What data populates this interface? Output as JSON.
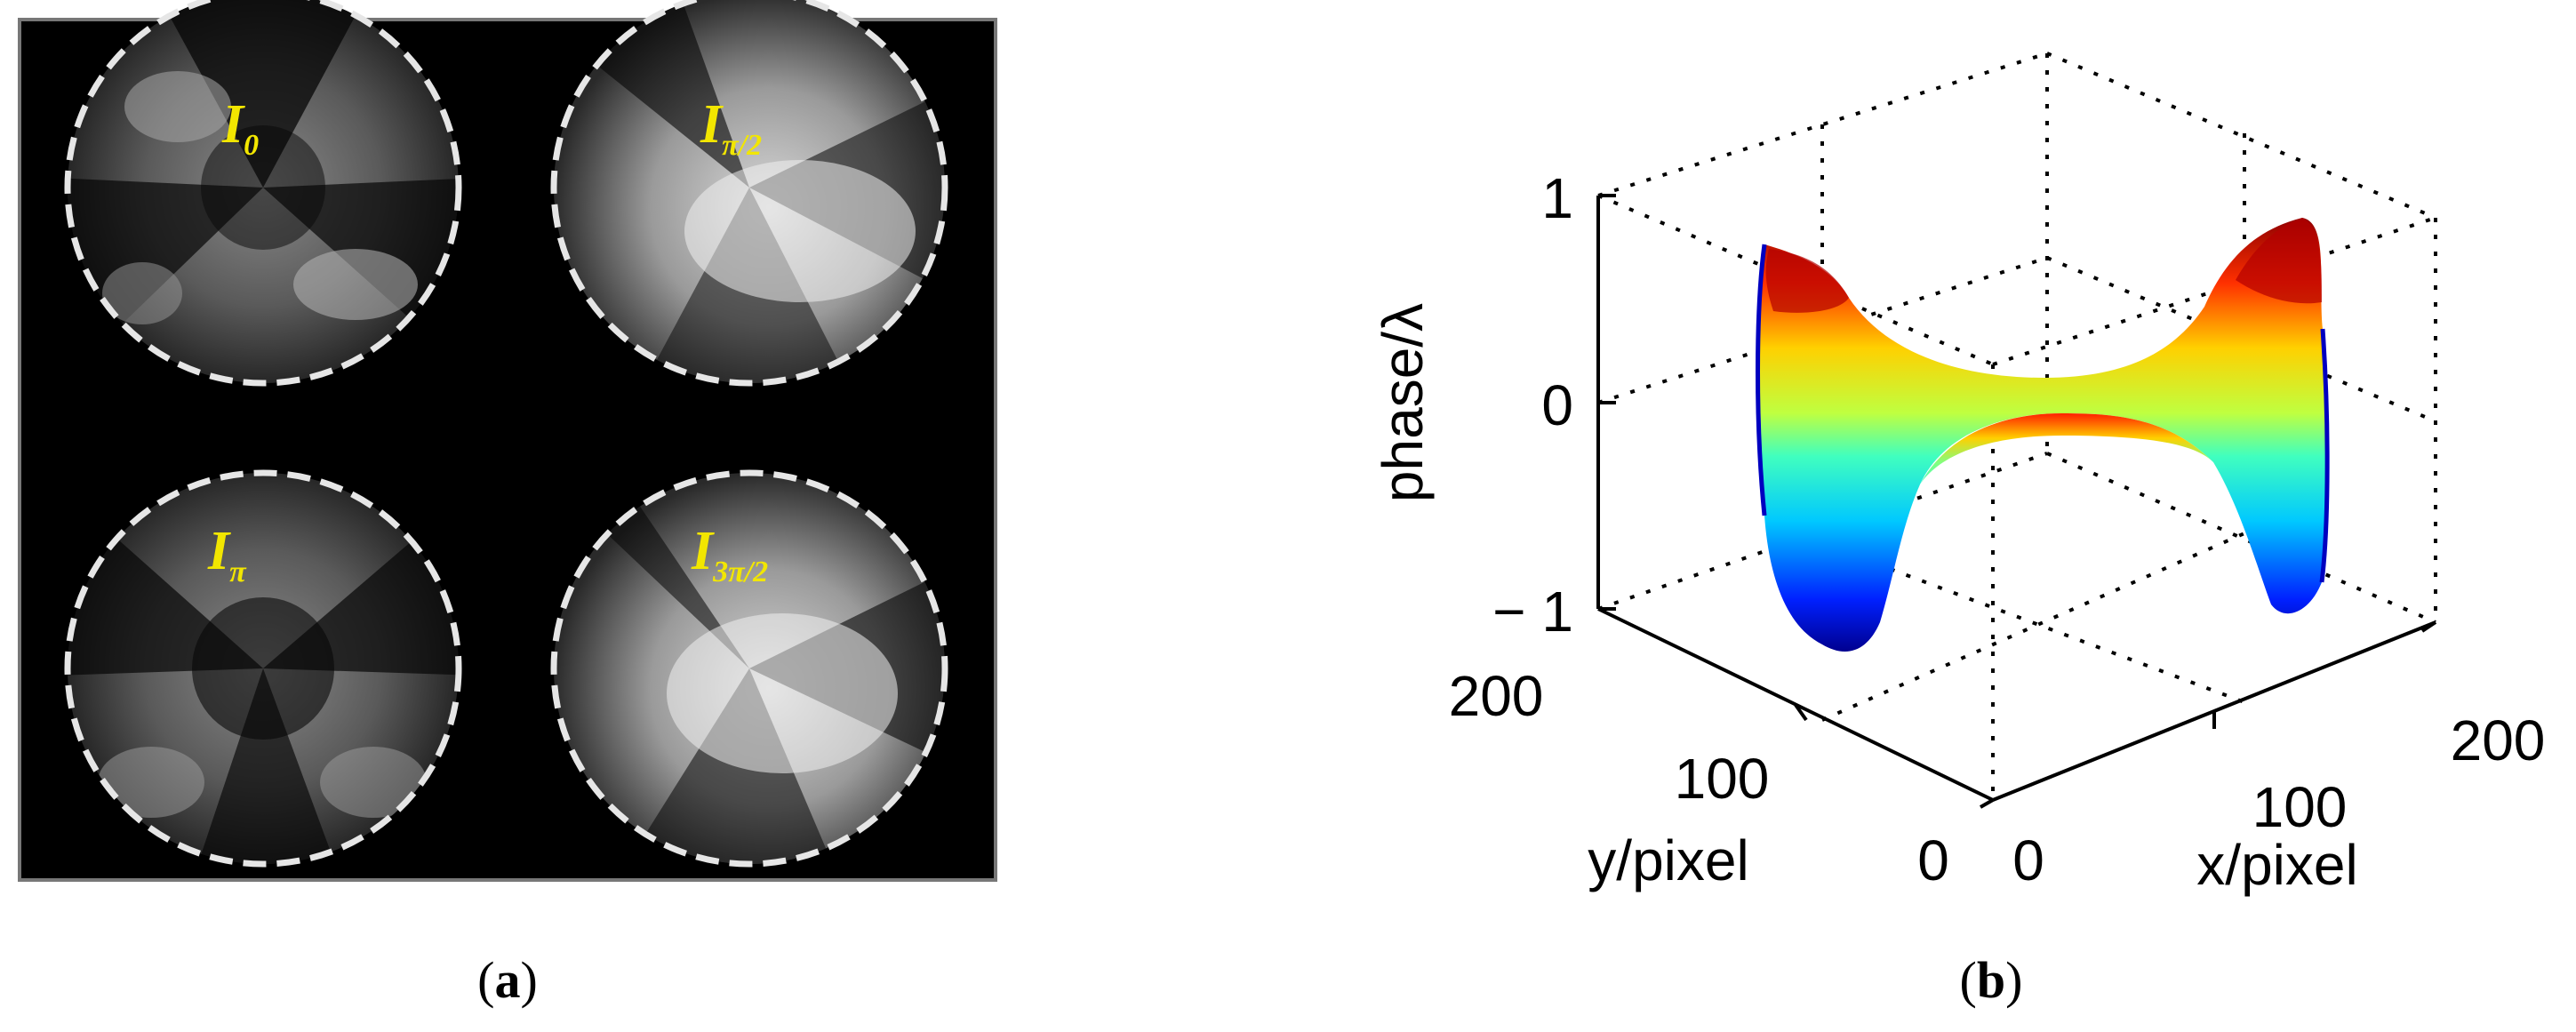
{
  "panel_a": {
    "caption_letter": "a",
    "frames": [
      {
        "symbol": "I",
        "subscript": "0"
      },
      {
        "symbol": "I",
        "subscript": "π/2"
      },
      {
        "symbol": "I",
        "subscript": "π"
      },
      {
        "symbol": "I",
        "subscript": "3π/2"
      }
    ]
  },
  "panel_b": {
    "caption_letter": "b"
  },
  "chart_data": {
    "type": "surface3d",
    "title": "",
    "zlabel": "phase/λ",
    "xlabel": "x/pixel",
    "ylabel": "y/pixel",
    "zlim": [
      -1,
      1
    ],
    "xlim": [
      0,
      200
    ],
    "ylim": [
      0,
      200
    ],
    "z_ticks": [
      "1",
      "0",
      "− 1"
    ],
    "x_ticks": [
      "0",
      "100",
      "200"
    ],
    "y_ticks": [
      "0",
      "100",
      "200"
    ],
    "grid": true,
    "colormap": "jet",
    "surface_description_values": {
      "corner_peak_max": 1,
      "center_saddle": 0,
      "edge_trough_min": -1
    }
  }
}
